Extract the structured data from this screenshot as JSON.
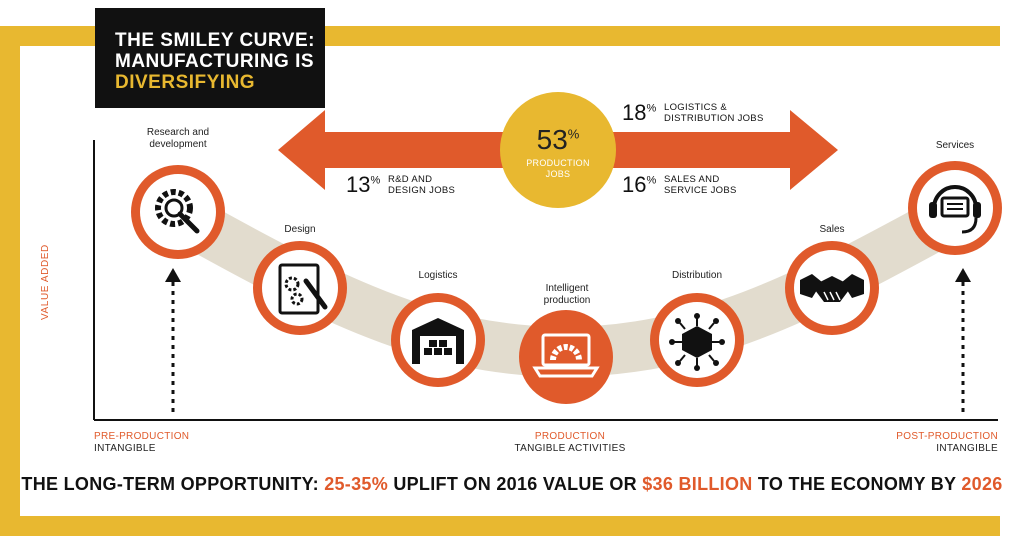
{
  "title": {
    "line1": "THE SMILEY CURVE:",
    "line2": "MANUFACTURING IS",
    "line3": "DIVERSIFYING"
  },
  "arrow_stats": {
    "center_value": "53",
    "center_unit": "%",
    "center_label1": "PRODUCTION",
    "center_label2": "JOBS",
    "rd_value": "13",
    "rd_unit": "%",
    "rd_label1": "R&D AND",
    "rd_label2": "DESIGN JOBS",
    "log_value": "18",
    "log_unit": "%",
    "log_label1": "LOGISTICS &",
    "log_label2": "DISTRIBUTION JOBS",
    "sales_value": "16",
    "sales_unit": "%",
    "sales_label1": "SALES AND",
    "sales_label2": "SERVICE JOBS"
  },
  "stages": {
    "research_1": "Research and",
    "research_2": "development",
    "design": "Design",
    "logistics": "Logistics",
    "intelligent_1": "Intelligent",
    "intelligent_2": "production",
    "distribution": "Distribution",
    "sales": "Sales",
    "services": "Services"
  },
  "axis": {
    "y_label": "VALUE ADDED",
    "pre_1": "PRE-PRODUCTION",
    "pre_2": "INTANGIBLE",
    "prod_1": "PRODUCTION",
    "prod_2": "TANGIBLE ACTIVITIES",
    "post_1": "POST-PRODUCTION",
    "post_2": "INTANGIBLE"
  },
  "bottom": {
    "part1": "THE LONG-TERM OPPORTUNITY: ",
    "hl1": "25-35%",
    "part2": " UPLIFT ON 2016 VALUE OR ",
    "hl2": "$36 BILLION",
    "part3": " TO THE ECONOMY BY ",
    "hl3": "2026"
  },
  "colors": {
    "orange": "#e05a2b",
    "gold": "#e8b830",
    "curve": "#e2dcce",
    "black": "#111111"
  },
  "icons": [
    "research-gear-icon",
    "design-blueprint-icon",
    "warehouse-icon",
    "laptop-gear-icon",
    "distribution-box-icon",
    "handshake-icon",
    "headset-icon"
  ]
}
